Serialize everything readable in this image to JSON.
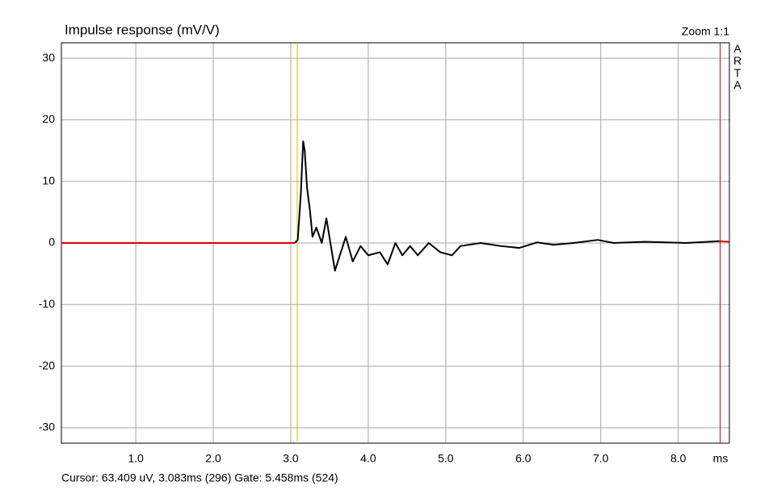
{
  "chart_data": {
    "type": "line",
    "title": "Impulse response (mV/V)",
    "zoom_label": "Zoom 1:1",
    "side_label": "ARTA",
    "x_label": "ms",
    "footer": "Cursor: 63.409 uV, 3.083ms (296)  Gate: 5.458ms (524)",
    "xlim": [
      0.04,
      8.66
    ],
    "ylim": [
      -32.5,
      32.5
    ],
    "xticks": [
      {
        "value": 1,
        "label": "1.0"
      },
      {
        "value": 2,
        "label": "2.0"
      },
      {
        "value": 3,
        "label": "3.0"
      },
      {
        "value": 4,
        "label": "4.0"
      },
      {
        "value": 5,
        "label": "5.0"
      },
      {
        "value": 6,
        "label": "6.0"
      },
      {
        "value": 7,
        "label": "7.0"
      },
      {
        "value": 8,
        "label": "8.0"
      }
    ],
    "yticks": [
      30,
      20,
      10,
      0,
      -10,
      -20,
      -30
    ],
    "grid": true,
    "markers": [
      {
        "x": 3.083,
        "color": "#d8c400"
      },
      {
        "x": 8.541,
        "color": "#c00000"
      }
    ],
    "series": [
      {
        "color": "#e00000",
        "x": [
          0.04,
          3.05
        ],
        "values": [
          0,
          0
        ]
      },
      {
        "color": "#000000",
        "x": [
          3.05,
          3.09,
          3.13,
          3.16,
          3.18,
          3.21,
          3.25,
          3.28,
          3.33,
          3.4,
          3.46,
          3.57,
          3.71,
          3.8,
          3.9,
          4.0,
          4.15,
          4.25,
          4.35,
          4.44,
          4.54,
          4.64,
          4.78,
          4.93,
          5.08,
          5.19,
          5.45,
          5.71,
          5.95,
          6.18,
          6.39,
          6.65,
          6.96,
          7.17,
          7.58,
          8.1,
          8.53
        ],
        "values": [
          0,
          0.5,
          8,
          16.5,
          15,
          9,
          5,
          1,
          2.5,
          0,
          4,
          -4.5,
          1,
          -3,
          -0.5,
          -2,
          -1.5,
          -3.5,
          0,
          -2,
          -0.5,
          -2,
          0,
          -1.5,
          -2,
          -0.5,
          0,
          -0.5,
          -0.8,
          0.1,
          -0.3,
          0,
          0.5,
          0,
          0.2,
          0,
          0.3
        ]
      },
      {
        "color": "#e00000",
        "x": [
          8.53,
          8.66
        ],
        "values": [
          0.3,
          0.2
        ]
      }
    ]
  }
}
